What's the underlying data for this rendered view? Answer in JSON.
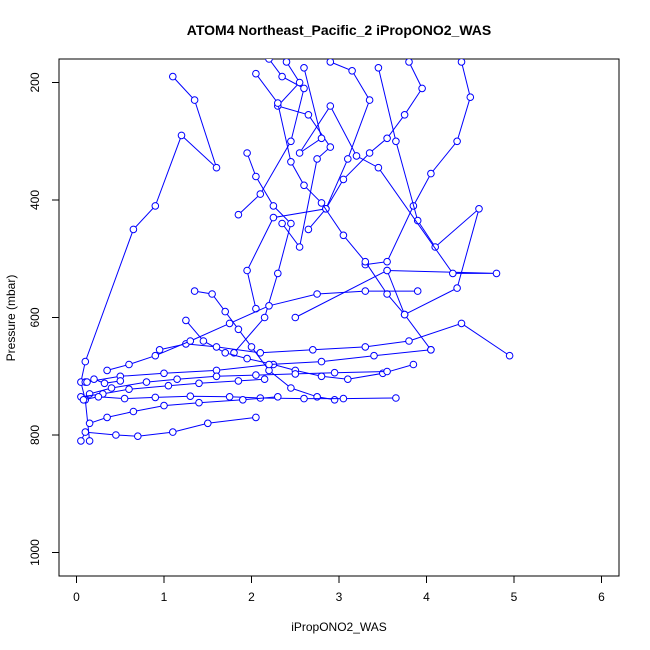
{
  "chart_data": {
    "type": "line",
    "title": "ATOM4 Northeast_Pacific_2 iPropONO2_WAS",
    "xlabel": "iPropONO2_WAS",
    "ylabel": "Pressure (mbar)",
    "xlim": [
      -0.2,
      6.2
    ],
    "ylim": [
      1040,
      160
    ],
    "y_reversed": true,
    "xticks": [
      0,
      1,
      2,
      3,
      4,
      5,
      6
    ],
    "yticks": [
      200,
      400,
      600,
      800,
      1000
    ],
    "grid": false,
    "legend": "none",
    "color": "#0000ff",
    "marker": "open-circle",
    "series": [
      {
        "x": [
          2.2,
          2.35,
          2.6,
          2.45,
          2.1,
          1.85
        ],
        "y": [
          160,
          190,
          210,
          300,
          390,
          425
        ]
      },
      {
        "x": [
          1.1,
          1.35,
          1.6,
          1.2,
          0.9,
          0.65,
          0.1,
          0.05,
          0.1,
          0.15
        ],
        "y": [
          190,
          230,
          345,
          290,
          410,
          450,
          675,
          710,
          740,
          810
        ]
      },
      {
        "x": [
          2.4,
          2.55,
          2.3,
          2.65,
          2.9,
          2.75,
          2.55,
          2.35
        ],
        "y": [
          165,
          200,
          240,
          255,
          310,
          330,
          480,
          440
        ]
      },
      {
        "x": [
          3.8,
          3.95,
          3.75,
          3.55,
          3.35,
          3.05,
          2.85,
          2.65
        ],
        "y": [
          165,
          210,
          255,
          295,
          320,
          365,
          415,
          450
        ]
      },
      {
        "x": [
          4.4,
          4.5,
          4.35,
          4.05,
          3.85,
          3.55,
          3.3
        ],
        "y": [
          165,
          225,
          300,
          355,
          410,
          505,
          510
        ]
      },
      {
        "x": [
          2.9,
          3.15,
          3.35,
          3.1,
          2.85,
          2.25,
          1.95,
          2.05
        ],
        "y": [
          165,
          180,
          230,
          330,
          415,
          430,
          520,
          585
        ]
      },
      {
        "x": [
          1.95,
          2.05,
          2.25,
          2.45,
          2.3,
          2.15,
          1.8
        ],
        "y": [
          320,
          360,
          410,
          440,
          525,
          600,
          660
        ]
      },
      {
        "x": [
          3.45,
          3.65,
          3.9,
          4.1,
          4.6,
          4.35,
          3.75,
          3.55
        ],
        "y": [
          175,
          300,
          435,
          480,
          415,
          550,
          595,
          520
        ]
      },
      {
        "x": [
          2.6,
          2.8,
          2.55,
          2.9,
          3.2,
          3.45,
          4.3,
          4.8,
          3.55,
          2.5
        ],
        "y": [
          175,
          295,
          320,
          240,
          325,
          345,
          525,
          525,
          520,
          600
        ]
      },
      {
        "x": [
          2.05,
          2.3,
          2.45,
          2.6,
          2.8,
          3.05,
          3.3,
          3.55,
          3.75,
          4.05
        ],
        "y": [
          185,
          235,
          335,
          375,
          405,
          460,
          505,
          560,
          595,
          655
        ]
      },
      {
        "x": [
          1.35,
          1.55,
          1.7,
          1.85,
          2.0,
          2.2,
          2.45,
          2.75,
          2.95
        ],
        "y": [
          555,
          560,
          590,
          620,
          650,
          690,
          720,
          735,
          740
        ]
      },
      {
        "x": [
          1.25,
          1.45,
          1.7,
          1.95,
          2.25,
          2.5,
          2.8,
          3.1,
          3.5,
          3.85
        ],
        "y": [
          605,
          640,
          660,
          670,
          680,
          690,
          700,
          705,
          695,
          680
        ]
      },
      {
        "x": [
          0.95,
          1.25,
          1.6,
          2.1,
          2.7,
          3.3,
          3.8,
          4.4,
          4.95
        ],
        "y": [
          655,
          645,
          650,
          660,
          655,
          650,
          640,
          610,
          665
        ]
      },
      {
        "x": [
          0.35,
          0.6,
          0.9,
          1.3,
          1.75,
          2.2,
          2.75,
          3.3,
          3.9
        ],
        "y": [
          690,
          680,
          665,
          640,
          610,
          580,
          560,
          555,
          555
        ]
      },
      {
        "x": [
          0.1,
          0.5,
          1.0,
          1.6,
          2.2,
          2.8,
          3.4,
          4.05
        ],
        "y": [
          710,
          700,
          695,
          690,
          680,
          675,
          665,
          655
        ]
      },
      {
        "x": [
          0.15,
          0.4,
          0.8,
          1.15,
          1.6,
          2.05,
          2.5,
          2.95,
          3.55
        ],
        "y": [
          730,
          720,
          710,
          705,
          700,
          698,
          696,
          694,
          692
        ]
      },
      {
        "x": [
          0.05,
          0.3,
          0.6,
          1.05,
          1.4,
          1.85,
          2.15
        ],
        "y": [
          735,
          730,
          722,
          716,
          712,
          708,
          705
        ]
      },
      {
        "x": [
          0.08,
          0.25,
          0.55,
          0.9,
          1.3,
          1.75,
          2.1,
          2.6,
          3.05,
          3.65
        ],
        "y": [
          740,
          735,
          738,
          736,
          734,
          735,
          737,
          738,
          738,
          737
        ]
      },
      {
        "x": [
          0.15,
          0.35,
          0.65,
          1.0,
          1.4,
          1.9,
          2.3
        ],
        "y": [
          780,
          770,
          760,
          750,
          745,
          740,
          735
        ]
      },
      {
        "x": [
          0.05,
          0.1,
          0.45,
          0.7,
          1.1,
          1.5,
          2.05
        ],
        "y": [
          810,
          795,
          800,
          802,
          795,
          780,
          770
        ]
      },
      {
        "x": [
          0.12,
          0.2,
          0.32,
          0.5
        ],
        "y": [
          710,
          705,
          712,
          708
        ]
      }
    ]
  }
}
